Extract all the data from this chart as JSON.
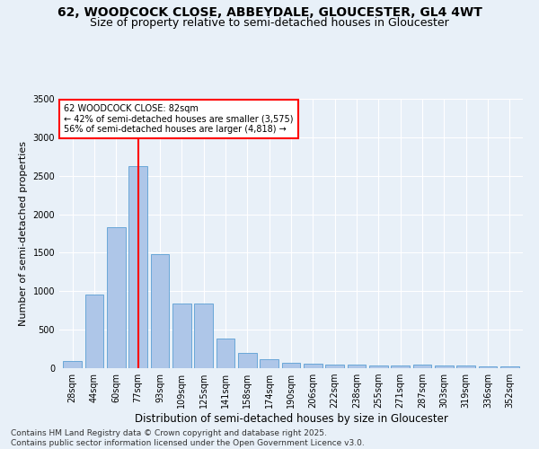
{
  "title_line1": "62, WOODCOCK CLOSE, ABBEYDALE, GLOUCESTER, GL4 4WT",
  "title_line2": "Size of property relative to semi-detached houses in Gloucester",
  "xlabel": "Distribution of semi-detached houses by size in Gloucester",
  "ylabel": "Number of semi-detached properties",
  "categories": [
    "28sqm",
    "44sqm",
    "60sqm",
    "77sqm",
    "93sqm",
    "109sqm",
    "125sqm",
    "141sqm",
    "158sqm",
    "174sqm",
    "190sqm",
    "206sqm",
    "222sqm",
    "238sqm",
    "255sqm",
    "271sqm",
    "287sqm",
    "303sqm",
    "319sqm",
    "336sqm",
    "352sqm"
  ],
  "values": [
    95,
    960,
    1830,
    2630,
    1480,
    840,
    840,
    390,
    200,
    115,
    75,
    60,
    50,
    45,
    40,
    35,
    50,
    30,
    30,
    25,
    20
  ],
  "bar_color": "#aec6e8",
  "bar_edge_color": "#5a9fd4",
  "vline_x_index": 3,
  "vline_color": "red",
  "annotation_title": "62 WOODCOCK CLOSE: 82sqm",
  "annotation_line1": "← 42% of semi-detached houses are smaller (3,575)",
  "annotation_line2": "56% of semi-detached houses are larger (4,818) →",
  "annotation_box_color": "white",
  "annotation_box_edge_color": "red",
  "ylim": [
    0,
    3500
  ],
  "yticks": [
    0,
    500,
    1000,
    1500,
    2000,
    2500,
    3000,
    3500
  ],
  "footer_line1": "Contains HM Land Registry data © Crown copyright and database right 2025.",
  "footer_line2": "Contains public sector information licensed under the Open Government Licence v3.0.",
  "bg_color": "#e8f0f8",
  "plot_bg_color": "#e8f0f8",
  "title_fontsize": 10,
  "subtitle_fontsize": 9,
  "tick_fontsize": 7,
  "xlabel_fontsize": 8.5,
  "ylabel_fontsize": 8,
  "footer_fontsize": 6.5
}
